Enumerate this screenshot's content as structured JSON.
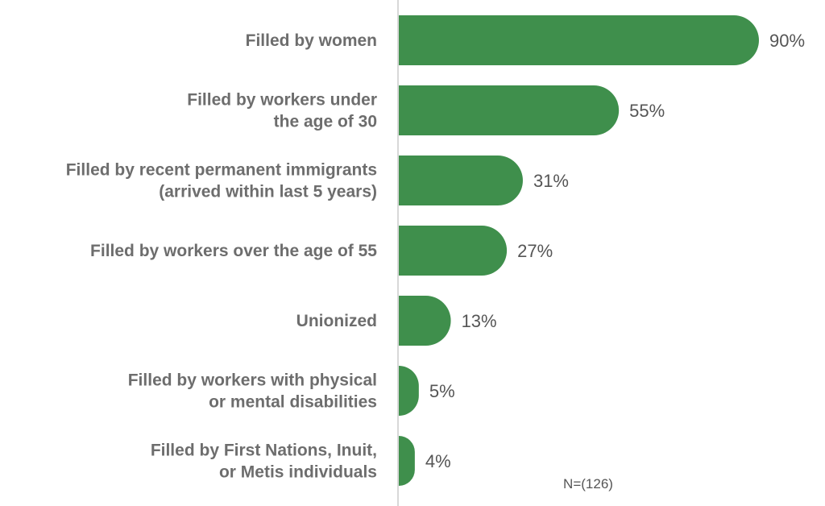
{
  "chart_data": {
    "type": "bar",
    "orientation": "horizontal",
    "categories": [
      [
        "Filled by women"
      ],
      [
        "Filled by workers under",
        "the age of 30"
      ],
      [
        "Filled by recent permanent immigrants",
        "(arrived within last 5 years)"
      ],
      [
        "Filled by workers over the age of 55"
      ],
      [
        "Unionized"
      ],
      [
        "Filled by workers with physical",
        "or mental disabilities"
      ],
      [
        "Filled by First Nations, Inuit,",
        "or Metis individuals"
      ]
    ],
    "values": [
      90,
      55,
      31,
      27,
      13,
      5,
      4
    ],
    "value_labels": [
      "90%",
      "55%",
      "31%",
      "27%",
      "13%",
      "5%",
      "4%"
    ],
    "xlim": [
      0,
      100
    ],
    "grid": false,
    "legend": "none",
    "bar_color": "#3f8f4c",
    "axis_color": "#cccccc",
    "note": "N=(126)"
  }
}
